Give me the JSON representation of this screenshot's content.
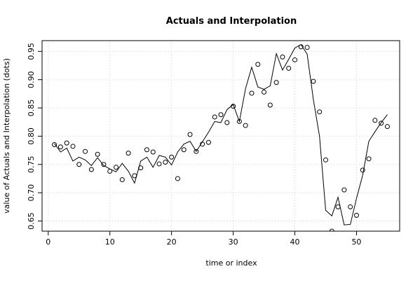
{
  "chart_data": {
    "type": "line",
    "title": "Actuals and Interpolation",
    "xlabel": "time or index",
    "ylabel": "value of Actuals and Interpolation (dots)",
    "xlim": [
      -1,
      57
    ],
    "ylim": [
      0.632,
      0.969
    ],
    "x_ticks": [
      0,
      10,
      20,
      30,
      40,
      50
    ],
    "y_ticks": [
      0.65,
      0.7,
      0.75,
      0.8,
      0.85,
      0.9,
      0.95
    ],
    "grid": true,
    "legend": "none",
    "colors": {
      "line": "#000000",
      "points": "#000000",
      "grid": "#d0d0d0",
      "frame": "#000000"
    },
    "series": [
      {
        "kind": "points",
        "x": [
          1,
          2,
          3,
          4,
          5,
          6,
          7,
          8,
          9,
          10,
          11,
          12,
          13,
          14,
          15,
          16,
          17,
          18,
          19,
          20,
          21,
          22,
          23,
          24,
          25,
          26,
          27,
          28,
          29,
          30,
          31,
          32,
          33,
          34,
          35,
          36,
          37,
          38,
          39,
          40,
          41,
          42,
          43,
          44,
          45,
          46,
          47,
          48,
          49,
          50,
          51,
          52,
          53,
          54,
          55
        ],
        "y": [
          0.785,
          0.781,
          0.788,
          0.782,
          0.75,
          0.773,
          0.741,
          0.768,
          0.75,
          0.738,
          0.745,
          0.723,
          0.77,
          0.73,
          0.744,
          0.776,
          0.772,
          0.751,
          0.754,
          0.763,
          0.725,
          0.776,
          0.803,
          0.773,
          0.786,
          0.789,
          0.834,
          0.838,
          0.824,
          0.853,
          0.826,
          0.819,
          0.876,
          0.927,
          0.878,
          0.855,
          0.895,
          0.94,
          0.92,
          0.935,
          0.958,
          0.957,
          0.897,
          0.843,
          0.758,
          0.632,
          0.675,
          0.705,
          0.675,
          0.66,
          0.74,
          0.76,
          0.828,
          0.823,
          0.817
        ]
      },
      {
        "kind": "line",
        "x": [
          1,
          2,
          3,
          4,
          5,
          6,
          7,
          8,
          9,
          10,
          11,
          12,
          13,
          14,
          15,
          16,
          17,
          18,
          19,
          20,
          21,
          22,
          23,
          24,
          25,
          26,
          27,
          28,
          29,
          30,
          31,
          32,
          33,
          34,
          35,
          36,
          37,
          38,
          39,
          40,
          41,
          42,
          43,
          44,
          45,
          46,
          47,
          48,
          49,
          50,
          51,
          52,
          53,
          54,
          55
        ],
        "y": [
          0.787,
          0.772,
          0.779,
          0.756,
          0.763,
          0.758,
          0.748,
          0.762,
          0.748,
          0.742,
          0.737,
          0.752,
          0.738,
          0.717,
          0.756,
          0.763,
          0.745,
          0.766,
          0.763,
          0.749,
          0.772,
          0.786,
          0.791,
          0.773,
          0.79,
          0.807,
          0.826,
          0.824,
          0.847,
          0.856,
          0.826,
          0.884,
          0.922,
          0.887,
          0.883,
          0.889,
          0.946,
          0.917,
          0.936,
          0.956,
          0.962,
          0.945,
          0.865,
          0.8,
          0.669,
          0.659,
          0.692,
          0.643,
          0.644,
          0.69,
          0.731,
          0.791,
          0.808,
          0.824,
          0.838
        ]
      }
    ]
  }
}
